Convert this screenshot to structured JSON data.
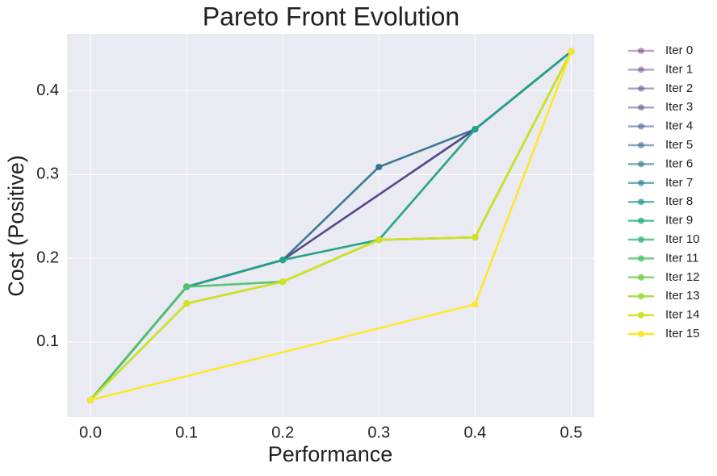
{
  "chart_data": {
    "type": "line",
    "title": "Pareto Front Evolution",
    "x_label": "Performance",
    "y_label": "Cost (Positive)",
    "xlim": [
      -0.0244,
      0.524
    ],
    "ylim": [
      0.0103,
      0.468
    ],
    "xticks": [
      {
        "value": 0,
        "label": "0.0"
      },
      {
        "value": 0.1,
        "label": "0.1"
      },
      {
        "value": 0.2,
        "label": "0.2"
      },
      {
        "value": 0.3,
        "label": "0.3"
      },
      {
        "value": 0.4,
        "label": "0.4"
      },
      {
        "value": 0.5,
        "label": "0.5"
      }
    ],
    "yticks": [
      0.1,
      0.2,
      0.3,
      0.4
    ],
    "grid": true,
    "legend": "outside right",
    "series": [
      {
        "name": "Iter 0",
        "color": "#440154",
        "x": [
          0,
          0.1,
          0.2,
          0.4,
          0.5
        ],
        "values": [
          0.0306,
          0.166,
          0.198,
          0.354,
          0.447
        ]
      },
      {
        "name": "Iter 1",
        "color": "#481a6c",
        "x": [
          0,
          0.1,
          0.2,
          0.4,
          0.5
        ],
        "values": [
          0.0306,
          0.166,
          0.198,
          0.354,
          0.447
        ]
      },
      {
        "name": "Iter 2",
        "color": "#472f7d",
        "x": [
          0,
          0.1,
          0.2,
          0.4,
          0.5
        ],
        "values": [
          0.0306,
          0.166,
          0.198,
          0.354,
          0.447
        ]
      },
      {
        "name": "Iter 3",
        "color": "#414487",
        "x": [
          0,
          0.1,
          0.2,
          0.4,
          0.5
        ],
        "values": [
          0.0306,
          0.166,
          0.198,
          0.354,
          0.447
        ]
      },
      {
        "name": "Iter 4",
        "color": "#39568c",
        "x": [
          0,
          0.1,
          0.2,
          0.3,
          0.4,
          0.5
        ],
        "values": [
          0.0306,
          0.166,
          0.198,
          0.309,
          0.354,
          0.447
        ]
      },
      {
        "name": "Iter 5",
        "color": "#31688e",
        "x": [
          0,
          0.1,
          0.2,
          0.3,
          0.4,
          0.5
        ],
        "values": [
          0.0306,
          0.166,
          0.198,
          0.309,
          0.354,
          0.447
        ]
      },
      {
        "name": "Iter 6",
        "color": "#2a788e",
        "x": [
          0,
          0.1,
          0.2,
          0.3,
          0.4,
          0.5
        ],
        "values": [
          0.0306,
          0.166,
          0.198,
          0.309,
          0.354,
          0.447
        ]
      },
      {
        "name": "Iter 7",
        "color": "#23888e",
        "x": [
          0,
          0.1,
          0.2,
          0.3,
          0.4,
          0.5
        ],
        "values": [
          0.0306,
          0.166,
          0.198,
          0.222,
          0.354,
          0.447
        ]
      },
      {
        "name": "Iter 8",
        "color": "#1f988b",
        "x": [
          0,
          0.1,
          0.2,
          0.3,
          0.4,
          0.5
        ],
        "values": [
          0.0306,
          0.166,
          0.198,
          0.222,
          0.354,
          0.447
        ]
      },
      {
        "name": "Iter 9",
        "color": "#22a884",
        "x": [
          0,
          0.1,
          0.2,
          0.3,
          0.4,
          0.5
        ],
        "values": [
          0.0306,
          0.166,
          0.198,
          0.222,
          0.354,
          0.447
        ]
      },
      {
        "name": "Iter 10",
        "color": "#35b779",
        "x": [
          0,
          0.1,
          0.2,
          0.3,
          0.4,
          0.5
        ],
        "values": [
          0.0306,
          0.166,
          0.172,
          0.222,
          0.225,
          0.447
        ]
      },
      {
        "name": "Iter 11",
        "color": "#54c568",
        "x": [
          0,
          0.1,
          0.2,
          0.3,
          0.4,
          0.5
        ],
        "values": [
          0.0306,
          0.166,
          0.172,
          0.222,
          0.225,
          0.447
        ]
      },
      {
        "name": "Iter 12",
        "color": "#7ad151",
        "x": [
          0,
          0.1,
          0.2,
          0.3,
          0.4,
          0.5
        ],
        "values": [
          0.0306,
          0.146,
          0.172,
          0.222,
          0.225,
          0.447
        ]
      },
      {
        "name": "Iter 13",
        "color": "#a5db36",
        "x": [
          0,
          0.1,
          0.2,
          0.3,
          0.4,
          0.5
        ],
        "values": [
          0.0306,
          0.146,
          0.172,
          0.222,
          0.225,
          0.447
        ]
      },
      {
        "name": "Iter 14",
        "color": "#d2e21b",
        "x": [
          0,
          0.1,
          0.2,
          0.3,
          0.4,
          0.5
        ],
        "values": [
          0.0306,
          0.146,
          0.172,
          0.222,
          0.225,
          0.447
        ]
      },
      {
        "name": "Iter 15",
        "color": "#fde725",
        "x": [
          0,
          0.4,
          0.5
        ],
        "values": [
          0.0306,
          0.145,
          0.447
        ]
      }
    ]
  }
}
